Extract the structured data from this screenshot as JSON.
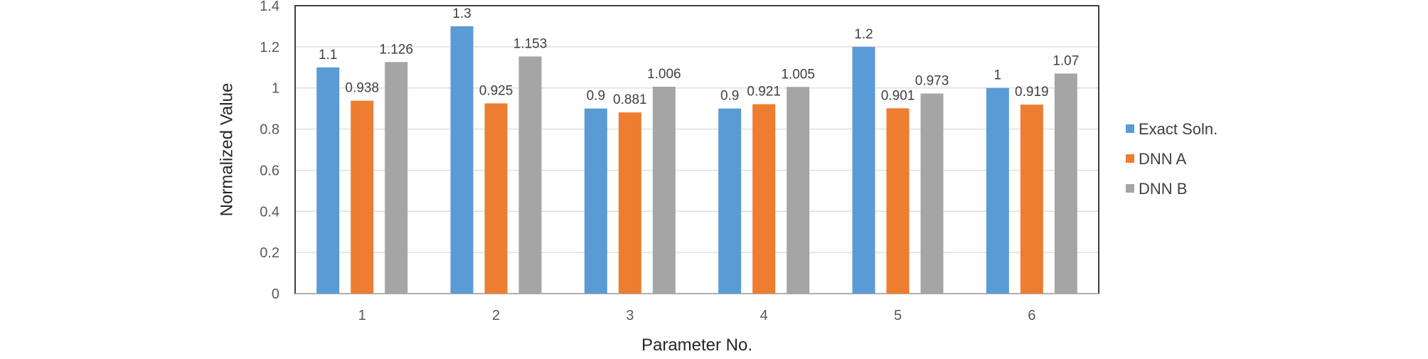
{
  "chart_data": {
    "type": "bar",
    "title": "",
    "xlabel": "Parameter No.",
    "ylabel": "Normalized Value",
    "categories": [
      "1",
      "2",
      "3",
      "4",
      "5",
      "6"
    ],
    "yticks": [
      "0",
      "0.2",
      "0.4",
      "0.6",
      "0.8",
      "1",
      "1.2",
      "1.4"
    ],
    "ylim": [
      0,
      1.4
    ],
    "grid": true,
    "legend_position": "right",
    "series": [
      {
        "name": "Exact Soln.",
        "color": "#5B9BD5",
        "values": [
          1.1,
          1.3,
          0.9,
          0.9,
          1.2,
          1.0
        ],
        "labels": [
          "1.1",
          "1.3",
          "0.9",
          "0.9",
          "1.2",
          "1"
        ]
      },
      {
        "name": "DNN A",
        "color": "#ED7D31",
        "values": [
          0.938,
          0.925,
          0.881,
          0.921,
          0.901,
          0.919
        ],
        "labels": [
          "0.938",
          "0.925",
          "0.881",
          "0.921",
          "0.901",
          "0.919"
        ]
      },
      {
        "name": "DNN B",
        "color": "#A5A5A5",
        "values": [
          1.126,
          1.153,
          1.006,
          1.005,
          0.973,
          1.07
        ],
        "labels": [
          "1.126",
          "1.153",
          "1.006",
          "1.005",
          "0.973",
          "1.07"
        ]
      }
    ]
  }
}
